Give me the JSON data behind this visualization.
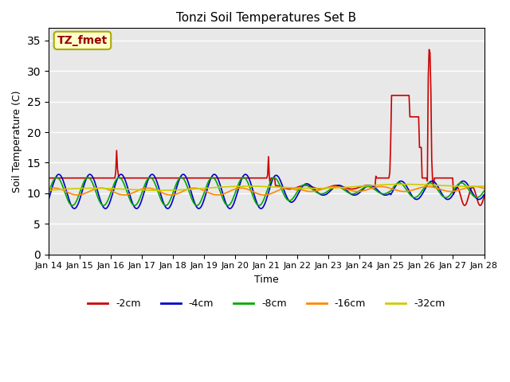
{
  "title": "Tonzi Soil Temperatures Set B",
  "xlabel": "Time",
  "ylabel": "Soil Temperature (C)",
  "ylim": [
    0,
    37
  ],
  "yticks": [
    0,
    5,
    10,
    15,
    20,
    25,
    30,
    35
  ],
  "legend_label": "TZ_fmet",
  "legend_box_color": "#ffffcc",
  "legend_box_edge": "#aaaa00",
  "legend_text_color": "#990000",
  "series_labels": [
    "-2cm",
    "-4cm",
    "-8cm",
    "-16cm",
    "-32cm"
  ],
  "series_colors": [
    "#cc0000",
    "#0000cc",
    "#00aa00",
    "#ff8800",
    "#cccc00"
  ],
  "background_color": "#e8e8e8",
  "x_labels": [
    "Jan 14",
    "Jan 15",
    "Jan 16",
    "Jan 17",
    "Jan 18",
    "Jan 19",
    "Jan 20",
    "Jan 21",
    "Jan 22",
    "Jan 23",
    "Jan 24",
    "Jan 25",
    "Jan 26",
    "Jan 27",
    "Jan 28"
  ],
  "n_points": 500
}
